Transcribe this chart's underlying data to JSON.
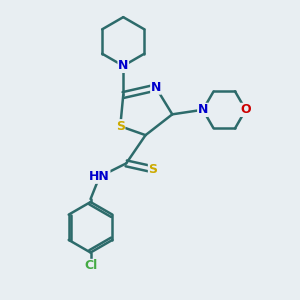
{
  "bg_color": "#e8eef2",
  "bond_color": "#2d6b6b",
  "bond_width": 1.8,
  "atom_colors": {
    "S": "#ccaa00",
    "N": "#0000cc",
    "O": "#cc0000",
    "Cl": "#44aa44",
    "C": "#2d6b6b"
  },
  "font_size": 9
}
